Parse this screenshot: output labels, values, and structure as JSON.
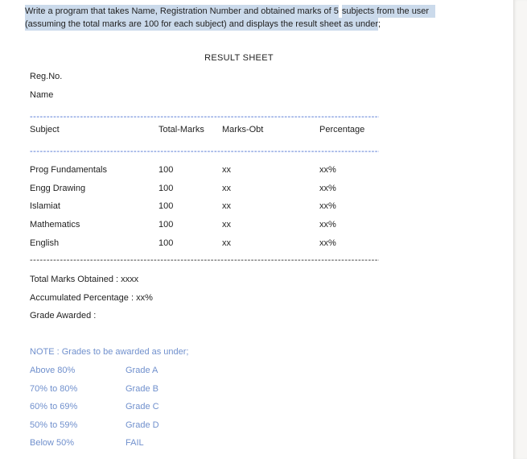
{
  "colors": {
    "page_bg": "#ffffff",
    "text": "#1f1f1f",
    "highlight": "#cbdaeb",
    "separator_blue": "#4a6fd1",
    "separator_dark": "#2e2e2e",
    "note": "#7090cd",
    "edge_bg": "#f7f6f4",
    "edge_border": "#e3e1de"
  },
  "prompt": {
    "line1_part1": "Write a program that takes Name, Registration Number and obtained marks of 5",
    "line1_part2": "subjects from the user",
    "line2_highlighted": "(assuming the total marks are 100 for each subject) and displays the result sheet as under",
    "line2_tail": ";"
  },
  "sheet": {
    "title": "RESULT SHEET",
    "reg_no_label": "Reg.No.",
    "name_label": "Name",
    "separator_dashes": "------------------------------------------------------------------------------------------------------------------------------------------------------",
    "table": {
      "headers": [
        "Subject",
        "Total-Marks",
        "Marks-Obt",
        "Percentage"
      ],
      "rows": [
        {
          "subject": "Prog Fundamentals",
          "total": "100",
          "obtained": "xx",
          "percentage": "xx%"
        },
        {
          "subject": "Engg Drawing",
          "total": "100",
          "obtained": "xx",
          "percentage": "xx%"
        },
        {
          "subject": "Islamiat",
          "total": "100",
          "obtained": "xx",
          "percentage": "xx%"
        },
        {
          "subject": "Mathematics",
          "total": "100",
          "obtained": "xx",
          "percentage": "xx%"
        },
        {
          "subject": "English",
          "total": "100",
          "obtained": "xx",
          "percentage": "xx%"
        }
      ]
    },
    "summary": {
      "total_marks": "Total Marks Obtained : xxxx",
      "accumulated_percentage": "Accumulated Percentage : xx%",
      "grade_awarded": "Grade Awarded :"
    }
  },
  "note": {
    "heading": "NOTE : Grades to be awarded as under;",
    "rows": [
      {
        "range": "Above 80%",
        "grade": "Grade A"
      },
      {
        "range": "70% to 80%",
        "grade": "Grade B"
      },
      {
        "range": "60% to 69%",
        "grade": "Grade C"
      },
      {
        "range": "50% to 59%",
        "grade": "Grade D"
      },
      {
        "range": "Below 50%",
        "grade": "FAIL"
      }
    ]
  }
}
